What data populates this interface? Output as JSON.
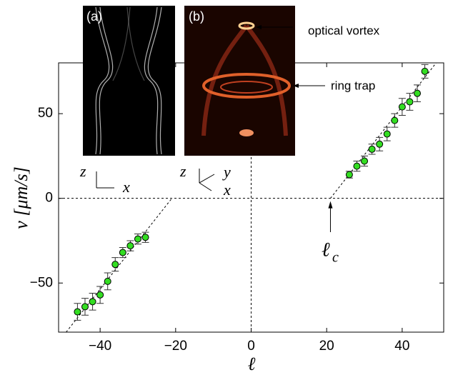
{
  "chart_data": {
    "type": "scatter",
    "xlabel": "ℓ",
    "ylabel": "v [μm/s]",
    "xlim": [
      -51,
      51
    ],
    "ylim": [
      -79,
      80
    ],
    "xticks": [
      {
        "value": -40,
        "label": "−40"
      },
      {
        "value": -20,
        "label": "−20"
      },
      0,
      20,
      40
    ],
    "yticks": [
      {
        "value": -50,
        "label": "−50"
      },
      0,
      50
    ],
    "series": [
      {
        "color": "#33dd22",
        "x": [
          -46,
          -44,
          -42,
          -40,
          -38,
          -36,
          -34,
          -32,
          -30,
          -28,
          26,
          28,
          30,
          32,
          34,
          36,
          38,
          40,
          42,
          44,
          46
        ],
        "values": [
          -67,
          -64,
          -61,
          -57,
          -49,
          -39,
          -32,
          -28,
          -24,
          -23,
          14,
          19,
          22,
          29,
          32,
          38,
          46,
          54,
          57,
          62,
          75
        ],
        "errors": [
          5,
          5,
          5,
          5,
          5,
          4,
          3,
          3,
          3,
          3,
          2,
          3,
          3,
          3,
          4,
          4,
          4,
          5,
          5,
          5,
          4
        ]
      }
    ],
    "fit_lines": [
      {
        "x": [
          -49,
          -21
        ],
        "values": [
          -79,
          0
        ]
      },
      {
        "x": [
          21,
          49
        ],
        "values": [
          0,
          80
        ]
      }
    ],
    "annotations": {
      "critical_symbol": "ℓ",
      "critical_subscript": "c",
      "inset_a": "(a)",
      "inset_b": "(b)",
      "optical_vortex": "optical vortex",
      "ring_trap": "ring trap",
      "axis_z_a": "z",
      "axis_x_a": "x",
      "axis_z_b": "z",
      "axis_y_b": "y",
      "axis_x_b": "x"
    }
  }
}
